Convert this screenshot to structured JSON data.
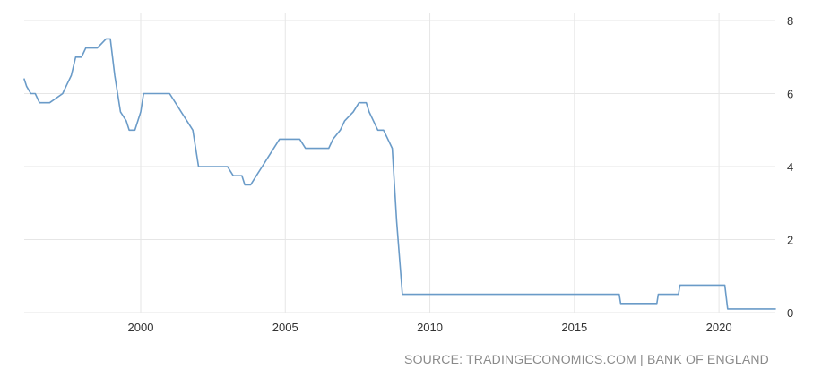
{
  "chart_data": {
    "type": "line",
    "title": "",
    "xlabel": "",
    "ylabel": "",
    "xlim": [
      1995.97,
      2021.95
    ],
    "ylim": [
      0,
      8
    ],
    "x_ticks": [
      2000,
      2005,
      2010,
      2015,
      2020
    ],
    "y_ticks": [
      0,
      2,
      4,
      6,
      8
    ],
    "grid": {
      "vertical": true,
      "horizontal": true
    },
    "line_color": "#6a9bc8",
    "series": [
      {
        "x": [
          1995.97,
          1996.05,
          1996.2,
          1996.35,
          1996.5,
          1996.8,
          1996.85,
          1997.3,
          1997.45,
          1997.6,
          1997.75,
          1997.95,
          1998.1,
          1998.35,
          1998.5,
          1998.8,
          1998.95,
          1999.1,
          1999.3,
          1999.5,
          1999.6,
          1999.8,
          2000.0,
          2000.1,
          2001.0,
          2001.2,
          2001.4,
          2001.6,
          2001.8,
          2002.0,
          2003.0,
          2003.2,
          2003.5,
          2003.6,
          2003.8,
          2004.0,
          2004.2,
          2004.4,
          2004.6,
          2004.8,
          2005.5,
          2005.7,
          2006.5,
          2006.65,
          2006.9,
          2007.05,
          2007.35,
          2007.55,
          2007.8,
          2007.9,
          2008.2,
          2008.4,
          2008.7,
          2008.85,
          2008.95,
          2009.05,
          2009.2,
          2016.55,
          2016.6,
          2017.85,
          2017.9,
          2018.6,
          2018.65,
          2020.2,
          2020.3,
          2021.95
        ],
        "y": [
          6.4,
          6.2,
          6.0,
          6.0,
          5.75,
          5.75,
          5.75,
          6.0,
          6.25,
          6.5,
          7.0,
          7.0,
          7.25,
          7.25,
          7.25,
          7.5,
          7.5,
          6.5,
          5.5,
          5.25,
          5.0,
          5.0,
          5.5,
          6.0,
          6.0,
          5.75,
          5.5,
          5.25,
          5.0,
          4.0,
          4.0,
          3.75,
          3.75,
          3.5,
          3.5,
          3.75,
          4.0,
          4.25,
          4.5,
          4.75,
          4.75,
          4.5,
          4.5,
          4.75,
          5.0,
          5.25,
          5.5,
          5.75,
          5.75,
          5.5,
          5.0,
          5.0,
          4.5,
          2.5,
          1.5,
          0.5,
          0.5,
          0.5,
          0.25,
          0.25,
          0.5,
          0.5,
          0.75,
          0.75,
          0.1,
          0.1
        ]
      }
    ]
  },
  "source": "SOURCE: TRADINGECONOMICS.COM | BANK OF ENGLAND"
}
